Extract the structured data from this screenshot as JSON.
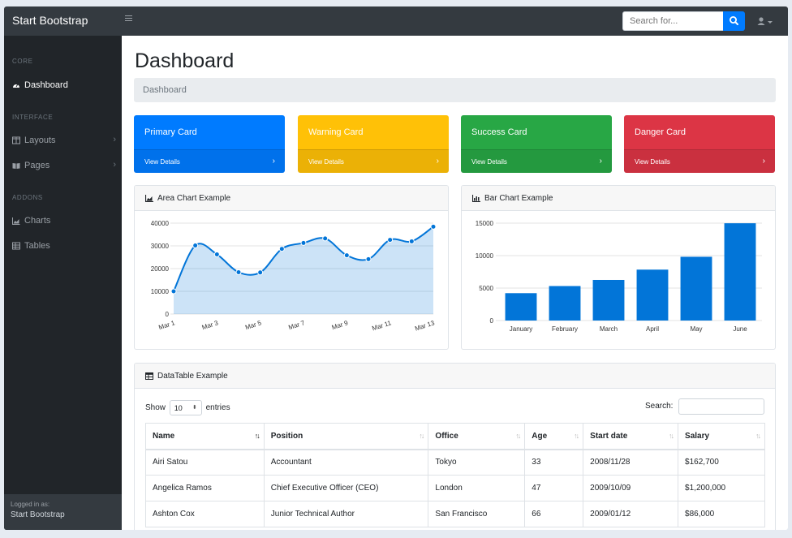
{
  "brand": "Start Bootstrap",
  "search": {
    "placeholder": "Search for..."
  },
  "sidebar": {
    "sections": [
      "CORE",
      "INTERFACE",
      "ADDONS"
    ],
    "items": [
      {
        "label": "Dashboard",
        "icon": "dashboard-icon",
        "active": true
      },
      {
        "label": "Layouts",
        "icon": "columns-icon",
        "chevron": true
      },
      {
        "label": "Pages",
        "icon": "book-icon",
        "chevron": true
      },
      {
        "label": "Charts",
        "icon": "area-chart-icon"
      },
      {
        "label": "Tables",
        "icon": "table-icon"
      }
    ],
    "footer": {
      "small": "Logged in as:",
      "name": "Start Bootstrap"
    }
  },
  "page": {
    "title": "Dashboard",
    "breadcrumb": "Dashboard"
  },
  "cards": [
    {
      "title": "Primary Card",
      "link": "View Details",
      "color": "#007bff"
    },
    {
      "title": "Warning Card",
      "link": "View Details",
      "color": "#ffc107"
    },
    {
      "title": "Success Card",
      "link": "View Details",
      "color": "#28a745"
    },
    {
      "title": "Danger Card",
      "link": "View Details",
      "color": "#dc3545"
    }
  ],
  "area_panel": {
    "title": "Area Chart Example"
  },
  "bar_panel": {
    "title": "Bar Chart Example"
  },
  "chart_data": [
    {
      "type": "area",
      "categories": [
        "Mar 1",
        "Mar 2",
        "Mar 3",
        "Mar 4",
        "Mar 5",
        "Mar 6",
        "Mar 7",
        "Mar 8",
        "Mar 9",
        "Mar 10",
        "Mar 11",
        "Mar 12",
        "Mar 13"
      ],
      "tick_labels": [
        "Mar 1",
        "Mar 3",
        "Mar 5",
        "Mar 7",
        "Mar 9",
        "Mar 11",
        "Mar 13"
      ],
      "values": [
        10000,
        30162,
        26263,
        18394,
        18287,
        28682,
        31274,
        33259,
        25849,
        24159,
        32651,
        31984,
        38451
      ],
      "ylim": [
        0,
        40000
      ],
      "yticks": [
        "0",
        "10000",
        "20000",
        "30000",
        "40000"
      ],
      "color": "#0275d8",
      "grid": true
    },
    {
      "type": "bar",
      "categories": [
        "January",
        "February",
        "March",
        "April",
        "May",
        "June"
      ],
      "values": [
        4215,
        5312,
        6251,
        7841,
        9821,
        14984
      ],
      "ylim": [
        0,
        15000
      ],
      "yticks": [
        "0",
        "5000",
        "10000",
        "15000"
      ],
      "color": "#0275d8",
      "grid": true
    }
  ],
  "table": {
    "title": "DataTable Example",
    "show_prefix": "Show",
    "show_value": "10",
    "show_suffix": "entries",
    "search_label": "Search:",
    "columns": [
      "Name",
      "Position",
      "Office",
      "Age",
      "Start date",
      "Salary"
    ],
    "sorted_column": "Name",
    "rows": [
      [
        "Airi Satou",
        "Accountant",
        "Tokyo",
        "33",
        "2008/11/28",
        "$162,700"
      ],
      [
        "Angelica Ramos",
        "Chief Executive Officer (CEO)",
        "London",
        "47",
        "2009/10/09",
        "$1,200,000"
      ],
      [
        "Ashton Cox",
        "Junior Technical Author",
        "San Francisco",
        "66",
        "2009/01/12",
        "$86,000"
      ]
    ]
  }
}
